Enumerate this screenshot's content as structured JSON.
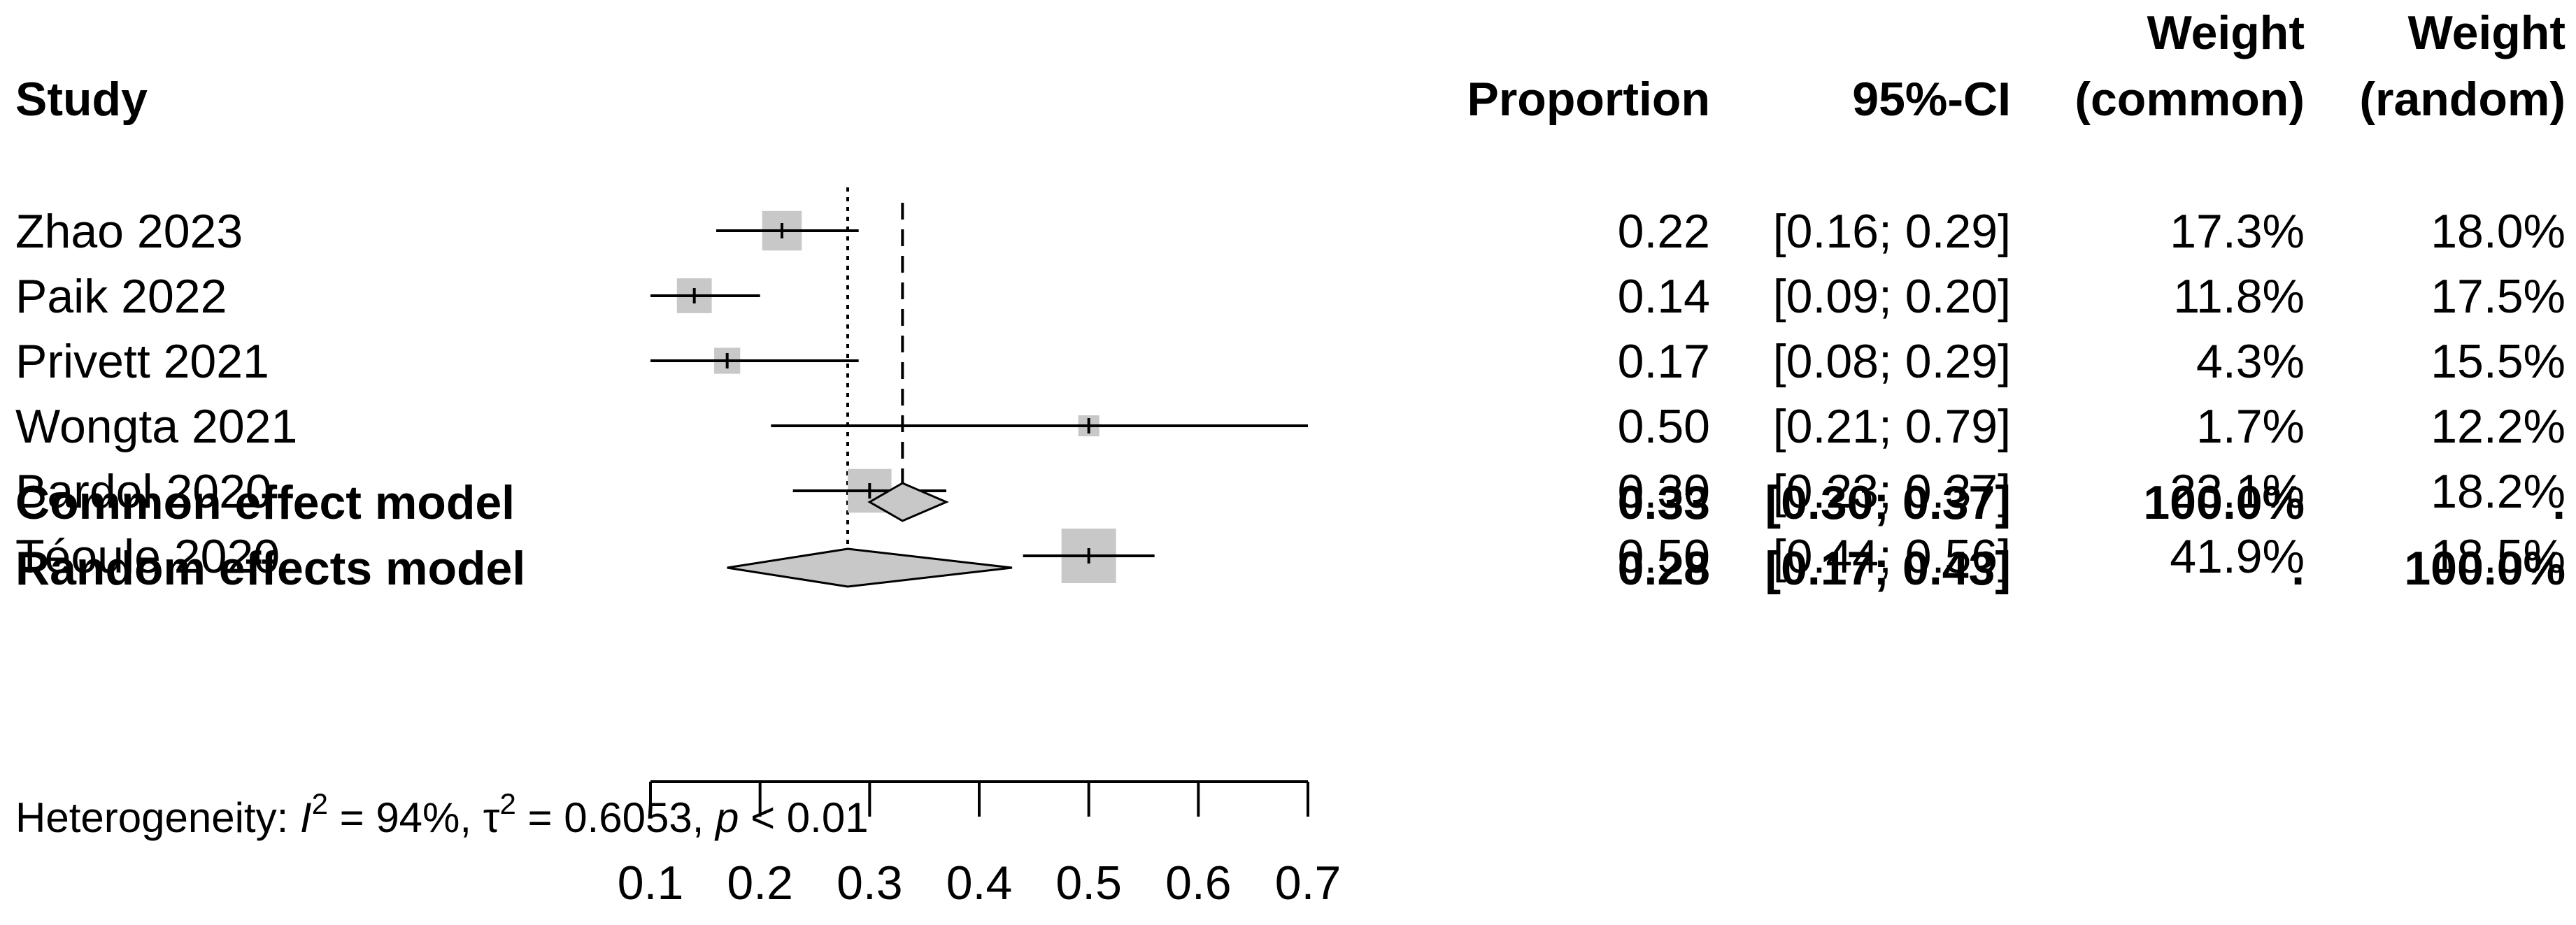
{
  "chart_data": {
    "type": "forest",
    "xlim": [
      0.1,
      0.7
    ],
    "xticks": [
      "0.1",
      "0.2",
      "0.3",
      "0.4",
      "0.5",
      "0.6",
      "0.7"
    ],
    "headers": {
      "study": "Study",
      "proportion": "Proportion",
      "ci": "95%-CI",
      "weight_common_line1": "Weight",
      "weight_common_line2": "(common)",
      "weight_random_line1": "Weight",
      "weight_random_line2": "(random)"
    },
    "studies": [
      {
        "name": "Zhao 2023",
        "proportion": 0.22,
        "lower": 0.16,
        "upper": 0.29,
        "prop_text": "0.22",
        "ci_text": "[0.16; 0.29]",
        "w_common": "17.3%",
        "w_random": "18.0%",
        "w_common_value": 17.3
      },
      {
        "name": "Paik 2022",
        "proportion": 0.14,
        "lower": 0.09,
        "upper": 0.2,
        "prop_text": "0.14",
        "ci_text": "[0.09; 0.20]",
        "w_common": "11.8%",
        "w_random": "17.5%",
        "w_common_value": 11.8
      },
      {
        "name": "Privett  2021",
        "proportion": 0.17,
        "lower": 0.08,
        "upper": 0.29,
        "prop_text": "0.17",
        "ci_text": "[0.08; 0.29]",
        "w_common": "4.3%",
        "w_random": "15.5%",
        "w_common_value": 4.3
      },
      {
        "name": "Wongta 2021",
        "proportion": 0.5,
        "lower": 0.21,
        "upper": 0.79,
        "prop_text": "0.50",
        "ci_text": "[0.21; 0.79]",
        "w_common": "1.7%",
        "w_random": "12.2%",
        "w_common_value": 1.7
      },
      {
        "name": "Bardol 2020",
        "proportion": 0.3,
        "lower": 0.23,
        "upper": 0.37,
        "prop_text": "0.30",
        "ci_text": "[0.23; 0.37]",
        "w_common": "23.1%",
        "w_random": "18.2%",
        "w_common_value": 23.1
      },
      {
        "name": "Téoule  2020",
        "proportion": 0.5,
        "lower": 0.44,
        "upper": 0.56,
        "prop_text": "0.50",
        "ci_text": "[0.44; 0.56]",
        "w_common": "41.9%",
        "w_random": "18.5%",
        "w_common_value": 41.9
      }
    ],
    "summaries": [
      {
        "name": "Common effect model",
        "estimate": 0.33,
        "lower": 0.3,
        "upper": 0.37,
        "est_text": "0.33",
        "ci_text": "[0.30; 0.37]",
        "w_common": "100.0%",
        "w_random": "."
      },
      {
        "name": "Random effects model",
        "estimate": 0.28,
        "lower": 0.17,
        "upper": 0.43,
        "est_text": "0.28",
        "ci_text": "[0.17; 0.43]",
        "w_common": ".",
        "w_random": "100.0%"
      }
    ],
    "heterogeneity": {
      "prefix": "Heterogeneity: ",
      "i2_symbol": "I",
      "i2_value": " = 94%, ",
      "tau2_symbol": "τ",
      "tau2_value": " = 0.6053, ",
      "p_symbol": "p",
      "p_value": " < 0.01",
      "superscript": "2"
    },
    "colors": {
      "square": "#c8c8c8",
      "diamond": "#c8c8c8",
      "line": "#000000"
    }
  }
}
